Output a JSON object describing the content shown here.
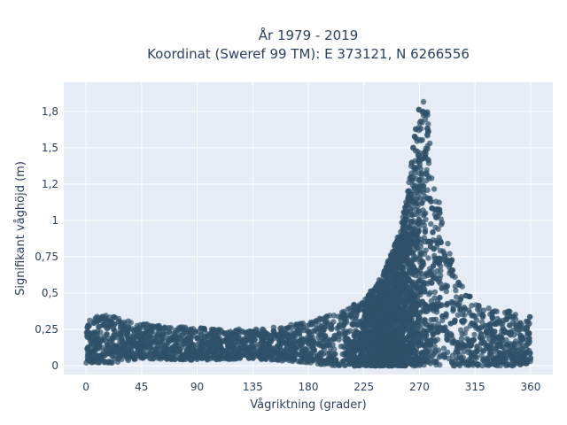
{
  "chart_data": {
    "type": "scatter",
    "title_lines": [
      "År 1979 - 2019",
      "Koordinat (Sweref 99 TM): E 373121, N 6266556"
    ],
    "xlabel": "Vågriktning (grader)",
    "ylabel": "Signifikant våghöjd (m)",
    "xlim": [
      -18,
      378
    ],
    "ylim": [
      -0.06,
      1.95
    ],
    "x_ticks": [
      0,
      45,
      90,
      135,
      180,
      225,
      270,
      315,
      360
    ],
    "x_tick_labels": [
      "0",
      "45",
      "90",
      "135",
      "180",
      "225",
      "270",
      "315",
      "360"
    ],
    "y_ticks": [
      0,
      0.25,
      0.5,
      0.75,
      1,
      1.25,
      1.5,
      1.75
    ],
    "y_tick_labels": [
      "0",
      "0,25",
      "0,5",
      "0,75",
      "1",
      "1,2",
      "1,5",
      "1,8"
    ],
    "grid": true,
    "background": "#e5ecf6",
    "marker_color": "#2f5168",
    "series": [
      {
        "name": "",
        "envelope_direction": [
          0,
          20,
          45,
          90,
          135,
          180,
          200,
          225,
          240,
          255,
          262,
          268,
          272,
          276,
          282,
          290,
          300,
          315,
          330,
          345,
          360
        ],
        "envelope_max_height": [
          0.33,
          0.35,
          0.29,
          0.26,
          0.25,
          0.3,
          0.36,
          0.45,
          0.62,
          0.95,
          1.3,
          1.8,
          1.85,
          1.8,
          1.3,
          0.95,
          0.6,
          0.45,
          0.38,
          0.38,
          0.34
        ],
        "envelope_min_height": [
          0.02,
          0.02,
          0.05,
          0.04,
          0.05,
          0.02,
          0.0,
          0.0,
          0.0,
          0.0,
          0.0,
          0.0,
          0.0,
          0.0,
          0.0,
          0.0,
          0.0,
          0.0,
          0.0,
          0.0,
          0.02
        ]
      }
    ]
  }
}
